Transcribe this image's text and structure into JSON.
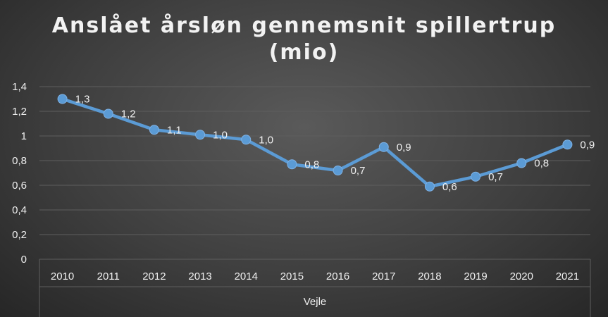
{
  "chart_data": {
    "type": "line",
    "title_line1": "Anslået årsløn gennemsnit spillertrup",
    "title_line2": "(mio)",
    "categories": [
      "2010",
      "2011",
      "2012",
      "2013",
      "2014",
      "2015",
      "2016",
      "2017",
      "2018",
      "2019",
      "2020",
      "2021"
    ],
    "category_group": "Vejle",
    "series": [
      {
        "values": [
          1.3,
          1.18,
          1.05,
          1.01,
          0.97,
          0.77,
          0.72,
          0.91,
          0.59,
          0.67,
          0.78,
          0.93
        ],
        "labels": [
          "1,3",
          "1,2",
          "1,1",
          "1,0",
          "1,0",
          "0,8",
          "0,7",
          "0,9",
          "0,6",
          "0,7",
          "0,8",
          "0,9"
        ]
      }
    ],
    "ylim": [
      0,
      1.4
    ],
    "yticks": [
      "0",
      "0,2",
      "0,4",
      "0,6",
      "0,8",
      "1",
      "1,2",
      "1,4"
    ],
    "grid": true,
    "colors": {
      "line": "#5b9bd5",
      "grid": "#5e5e5e",
      "text": "#f0f0f0"
    }
  }
}
